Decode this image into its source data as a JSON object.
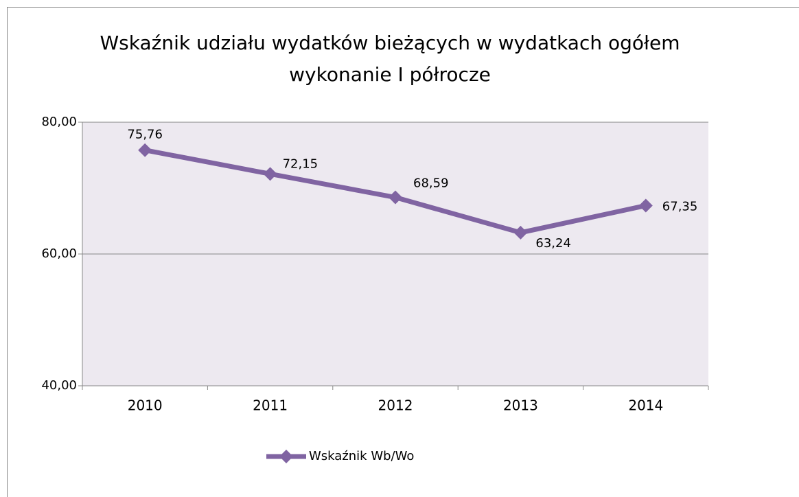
{
  "chart_data": {
    "type": "line",
    "title": "Wskaźnik udziału wydatków bieżących w wydatkach ogółem",
    "subtitle": "wykonanie I półrocze",
    "categories": [
      "2010",
      "2011",
      "2012",
      "2013",
      "2014"
    ],
    "series": [
      {
        "name": "Wskaźnik Wb/Wo",
        "color": "#8064a2",
        "values": [
          75.76,
          72.15,
          68.59,
          63.24,
          67.35
        ],
        "value_labels": [
          "75,76",
          "72,15",
          "68,59",
          "63,24",
          "67,35"
        ]
      }
    ],
    "ylim": [
      40,
      80
    ],
    "yticks": [
      {
        "value": 40,
        "label": "40,00"
      },
      {
        "value": 60,
        "label": "60,00"
      },
      {
        "value": 80,
        "label": "80,00"
      }
    ],
    "grid": true,
    "legend": "bottom"
  }
}
